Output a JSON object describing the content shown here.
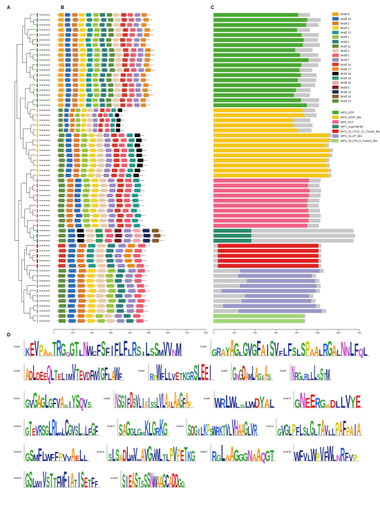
{
  "panels": {
    "a": "A",
    "b": "B",
    "c": "C",
    "d": "D"
  },
  "motif_legend": [
    {
      "label": "Motif 8",
      "color": "#f5a41b"
    },
    {
      "label": "Motif 10",
      "color": "#2e6db5"
    },
    {
      "label": "Motif 9",
      "color": "#e07a2a"
    },
    {
      "label": "Motif 2",
      "color": "#f6d21f"
    },
    {
      "label": "Motif 13",
      "color": "#1e9a8a"
    },
    {
      "label": "Motif 1",
      "color": "#9ac43a"
    },
    {
      "label": "Motif 4",
      "color": "#2c7f7a"
    },
    {
      "label": "Motif 11",
      "color": "#5f8f3a"
    },
    {
      "label": "Motif 3",
      "color": "#e8c9a8"
    },
    {
      "label": "Motif 5",
      "color": "#ec5b6e"
    },
    {
      "label": "Motif 7",
      "color": "#9a87c4"
    },
    {
      "label": "Motif 12",
      "color": "#d9352a"
    },
    {
      "label": "Motif 17",
      "color": "#e8891f"
    },
    {
      "label": "Motif 16",
      "color": "#111111"
    },
    {
      "label": "Motif 19",
      "color": "#2f9a66"
    },
    {
      "label": "Motif 18",
      "color": "#f2a3a8"
    },
    {
      "label": "Motif 6",
      "color": "#7a1a22"
    },
    {
      "label": "Motif 14",
      "color": "#1b2a5e"
    },
    {
      "label": "Motif 15",
      "color": "#8a5a2a"
    },
    {
      "label": "Motif 20",
      "color": "#6b8a2a"
    }
  ],
  "domain_legend": [
    {
      "label": "MFS_STP",
      "color": "#4aa832"
    },
    {
      "label": "MFS_HMIT_like",
      "color": "#f5c518"
    },
    {
      "label": "MFS_PLT",
      "color": "#f06285"
    },
    {
      "label": "MFS_superfamily",
      "color": "#2a8a6a"
    },
    {
      "label": "MFS_GLUT10_12_Class3_like",
      "color": "#e02020"
    },
    {
      "label": "MFS_GLUT_like",
      "color": "#9a98c8"
    },
    {
      "label": "MFS_GLUT6_8_Class3_like",
      "color": "#a2d67a"
    }
  ],
  "axis_b": {
    "ticks": [
      "0",
      "100",
      "200",
      "300",
      "400",
      "500",
      "600",
      "700",
      "800"
    ]
  },
  "axis_c": {
    "ticks": [
      "0",
      "100",
      "200",
      "300",
      "400",
      "500",
      "600",
      "700"
    ]
  },
  "logo_titles": [
    "Motif1",
    "Motif2",
    "Motif3",
    "Motif4",
    "Motif5",
    "Motif6",
    "Motif7",
    "Motif8",
    "Motif9",
    "Motif10",
    "Motif11",
    "Motif12",
    "Motif13",
    "Motif14",
    "Motif15",
    "Motif16",
    "Motif17",
    "Motif18",
    "Motif19",
    "Motif20"
  ],
  "logo_sequences": [
    "KEVPAaTRGqGTLNWcFSFIFLFLRSiLSSMVVNM",
    "GRAYAGlGVGFAISVfLFSLSPAALRGALNNLFQL",
    "ADLDEEQLTELIMVTEVDFWIGFLAWF",
    "RpWFLLVETKGRSLEEI",
    "GNGDAMLAGiAS",
    "NRGlRLLLSSTM",
    "GVGAGLGFVAsIYSQVS",
    "NSGIFDSVLIAISSLVLAALAAGFAP",
    "WRLWlsLWDYAL",
    "GNEERGaDLLVYE",
    "GTEVRSGLRLwLCGVSLgLFGF",
    "SAGGLGrKLGRKG",
    "SDGILKPSWRKTVLVHAAGLVR",
    "GVGLPFLSLGLTAVlLPAFPAIA",
    "GSMFLWFFPVvAeLL",
    "SLSADLWVwAVGVWLTLPVPETKG",
    "RGLAAGGGNAAQGT",
    "WFVLWPVFWLNRFVP",
    "GSLWIVSTTFMFIATISETFF",
    "SIEASTSSSNWAAGCADDGG"
  ]
}
